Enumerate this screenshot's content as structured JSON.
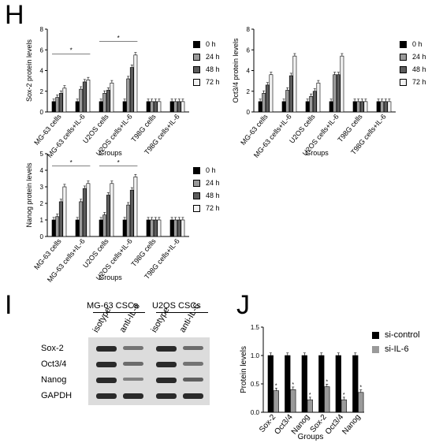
{
  "panels": {
    "h": "H",
    "i": "I",
    "j": "J"
  },
  "legend_time": [
    "0 h",
    "24 h",
    "48 h",
    "72 h"
  ],
  "legend_colors": [
    "#000000",
    "#9a9a9a",
    "#5c5c5c",
    "#f2f2f2"
  ],
  "legend_si": [
    "si-control",
    "si-IL-6"
  ],
  "legend_si_colors": [
    "#000000",
    "#9a9a9a"
  ],
  "blot": {
    "group_headers": [
      "MG-63 CSCs",
      "U2OS CSCs"
    ],
    "lanes": [
      "isotype",
      "anti-IL-6",
      "isotype",
      "anti-IL-6"
    ],
    "rows": [
      "Sox-2",
      "Oct3/4",
      "Nanog",
      "GAPDH"
    ],
    "intensity": [
      [
        1.0,
        0.45,
        1.0,
        0.5
      ],
      [
        1.0,
        0.5,
        1.0,
        0.45
      ],
      [
        1.0,
        0.35,
        1.0,
        0.6
      ],
      [
        1.0,
        1.0,
        1.0,
        1.0
      ]
    ]
  },
  "chart_data": [
    {
      "type": "bar",
      "ylabel": "Sox-2 protein levels",
      "xlabel": "Groups",
      "ylim": [
        0,
        8
      ],
      "yticks": [
        0,
        2,
        4,
        6,
        8
      ],
      "categories": [
        "MG-63 cells",
        "MG-63 cells+IL-6",
        "U2OS cells",
        "U2OS cells+IL-6",
        "T98G cells",
        "T98G cells+IL-6"
      ],
      "series": [
        {
          "name": "0 h",
          "values": [
            1.0,
            1.0,
            1.0,
            1.0,
            1.0,
            1.0
          ]
        },
        {
          "name": "24 h",
          "values": [
            1.4,
            2.2,
            1.8,
            3.2,
            1.0,
            1.0
          ]
        },
        {
          "name": "48 h",
          "values": [
            1.8,
            2.9,
            2.1,
            4.3,
            1.0,
            1.0
          ]
        },
        {
          "name": "72 h",
          "values": [
            2.3,
            3.1,
            2.8,
            5.5,
            1.0,
            1.0
          ]
        }
      ],
      "significance": [
        "*",
        "*"
      ]
    },
    {
      "type": "bar",
      "ylabel": "Oct3/4 protein levels",
      "xlabel": "Groups",
      "ylim": [
        0,
        8
      ],
      "yticks": [
        0,
        2,
        4,
        6,
        8
      ],
      "categories": [
        "MG-63 cells",
        "MG-63 cells+IL-6",
        "U2OS cells",
        "U2OS cells+IL-6",
        "T98G cells",
        "T98G cells+IL-6"
      ],
      "series": [
        {
          "name": "0 h",
          "values": [
            1.0,
            1.0,
            1.0,
            1.0,
            1.0,
            1.0
          ]
        },
        {
          "name": "24 h",
          "values": [
            1.8,
            2.1,
            1.5,
            3.6,
            1.0,
            1.0
          ]
        },
        {
          "name": "48 h",
          "values": [
            2.6,
            3.5,
            2.0,
            3.6,
            1.0,
            1.0
          ]
        },
        {
          "name": "72 h",
          "values": [
            3.6,
            5.4,
            2.8,
            5.4,
            1.0,
            1.0
          ]
        }
      ]
    },
    {
      "type": "bar",
      "ylabel": "Nanog protein levels",
      "xlabel": "Groups",
      "ylim": [
        0,
        5
      ],
      "yticks": [
        0,
        1,
        2,
        3,
        4,
        5
      ],
      "categories": [
        "MG-63 cells",
        "MG-63 cells+IL-6",
        "U2OS cells",
        "U2OS cells+IL-6",
        "T98G cells",
        "T98G cells+IL-6"
      ],
      "series": [
        {
          "name": "0 h",
          "values": [
            1.0,
            1.0,
            1.0,
            1.0,
            1.0,
            1.0
          ]
        },
        {
          "name": "24 h",
          "values": [
            1.2,
            2.1,
            1.3,
            1.9,
            1.0,
            1.0
          ]
        },
        {
          "name": "48 h",
          "values": [
            2.1,
            2.9,
            2.5,
            2.8,
            1.0,
            1.0
          ]
        },
        {
          "name": "72 h",
          "values": [
            3.0,
            3.2,
            3.2,
            3.6,
            1.0,
            1.0
          ]
        }
      ],
      "significance": [
        "*",
        "*"
      ]
    },
    {
      "type": "bar",
      "ylabel": "Protein levels",
      "xlabel": "Groups",
      "ylim": [
        0,
        1.5
      ],
      "yticks": [
        0.0,
        0.5,
        1.0,
        1.5
      ],
      "categories": [
        "Sox-2",
        "Oct3/4",
        "Nanog",
        "Sox-2",
        "Oct3/4",
        "Nanog"
      ],
      "series": [
        {
          "name": "si-control",
          "values": [
            1.0,
            1.0,
            1.0,
            1.0,
            1.0,
            1.0
          ]
        },
        {
          "name": "si-IL-6",
          "values": [
            0.38,
            0.4,
            0.22,
            0.45,
            0.22,
            0.35
          ]
        }
      ],
      "significance": [
        "*",
        "*",
        "*",
        "*",
        "*",
        "*"
      ]
    }
  ]
}
